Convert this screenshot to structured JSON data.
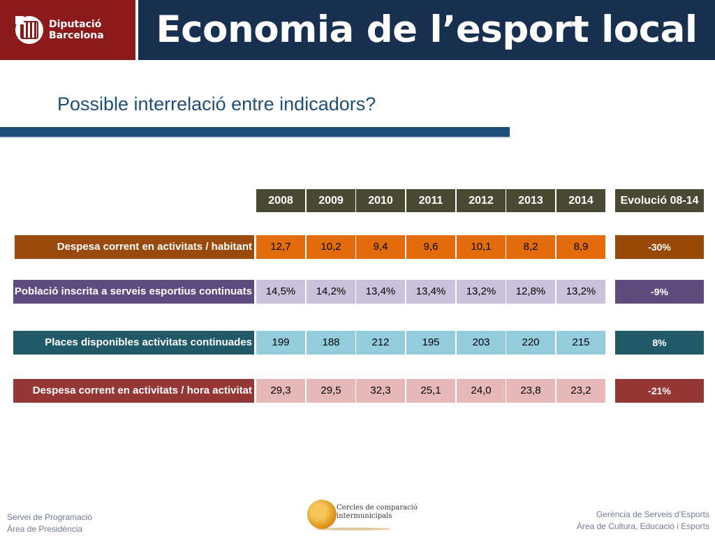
{
  "header": {
    "logo_line1": "Diputació",
    "logo_line2": "Barcelona",
    "title": "Economia de l’esport local"
  },
  "subtitle": "Possible interrelació entre indicadors?",
  "table": {
    "years": [
      "2008",
      "2009",
      "2010",
      "2011",
      "2012",
      "2013",
      "2014"
    ],
    "evolution_header": "Evolució 08-14",
    "rows": [
      {
        "label": "Despesa corrent en activitats / habitant",
        "values": [
          "12,7",
          "10,2",
          "9,4",
          "9,6",
          "10,1",
          "8,2",
          "8,9"
        ],
        "evolution": "-30%",
        "label_color": "#9a4a0c",
        "cell_color": "#e36c0a",
        "evolution_color": "#984807"
      },
      {
        "label": "Població inscrita a serveis esportius continuats",
        "values": [
          "14,5%",
          "14,2%",
          "13,4%",
          "13,4%",
          "13,2%",
          "12,8%",
          "13,2%"
        ],
        "evolution": "-9%",
        "label_color": "#5f4a7f",
        "cell_color": "#ccc1da",
        "evolution_color": "#604a7b"
      },
      {
        "label": "Places disponibles activitats continuades",
        "values": [
          "199",
          "188",
          "212",
          "195",
          "203",
          "220",
          "215"
        ],
        "evolution": "8%",
        "label_color": "#215968",
        "cell_color": "#93cddd",
        "evolution_color": "#215968"
      },
      {
        "label": "Despesa corrent en activitats / hora activitat",
        "values": [
          "29,3",
          "29,5",
          "32,3",
          "25,1",
          "24,0",
          "23,8",
          "23,2"
        ],
        "evolution": "-21%",
        "label_color": "#953735",
        "cell_color": "#e6b9b8",
        "evolution_color": "#953735"
      }
    ]
  },
  "footer": {
    "left_line1": "Servei de Programació",
    "left_line2": "Àrea de Presidència",
    "center_line1": "Cercles de comparació",
    "center_line2": "intermunicipals",
    "right_line1": "Gerència de Serveis d’Esports",
    "right_line2": "Àrea de Cultura, Educació i Esports"
  }
}
